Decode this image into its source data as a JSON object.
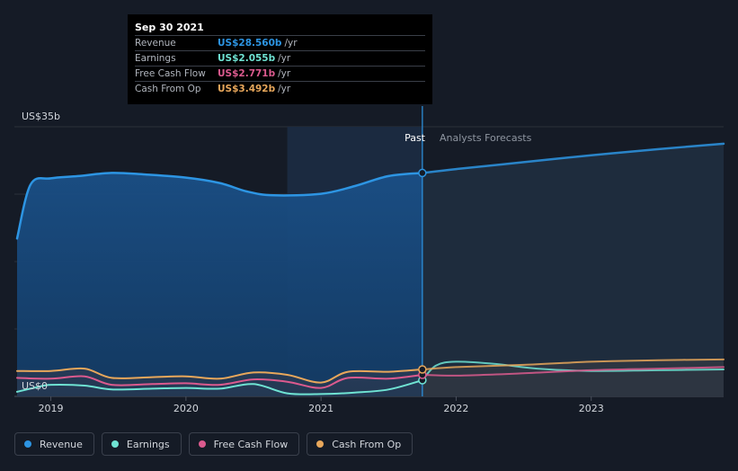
{
  "tooltip": {
    "date": "Sep 30 2021",
    "rows": [
      {
        "label": "Revenue",
        "value": "US$28.560b",
        "unit": "/yr",
        "color": "#2d95e3"
      },
      {
        "label": "Earnings",
        "value": "US$2.055b",
        "unit": "/yr",
        "color": "#6fe3d3"
      },
      {
        "label": "Free Cash Flow",
        "value": "US$2.771b",
        "unit": "/yr",
        "color": "#db5a8e"
      },
      {
        "label": "Cash From Op",
        "value": "US$3.492b",
        "unit": "/yr",
        "color": "#e8a75b"
      }
    ]
  },
  "legend": [
    {
      "label": "Revenue",
      "color": "#2d95e3"
    },
    {
      "label": "Earnings",
      "color": "#6fe3d3"
    },
    {
      "label": "Free Cash Flow",
      "color": "#db5a8e"
    },
    {
      "label": "Cash From Op",
      "color": "#e8a75b"
    }
  ],
  "chart_data": {
    "type": "line",
    "ylabel_top": "US$35b",
    "ylabel_bottom": "US$0",
    "ylim": [
      0,
      35
    ],
    "xlim": [
      2018.73,
      2023.98
    ],
    "x_tick_labels": [
      "2019",
      "2020",
      "2021",
      "2022",
      "2023"
    ],
    "x_ticks": [
      2019,
      2020,
      2021,
      2022,
      2023
    ],
    "past_label": "Past",
    "forecast_label": "Analysts Forecasts",
    "divider_x": 2021.75,
    "highlight_start_x": 2020.75,
    "grid": true,
    "legend_position": "bottom-left",
    "series": [
      {
        "name": "Revenue",
        "color": "#2d95e3",
        "points": [
          [
            2018.75,
            20.5
          ],
          [
            2018.85,
            27.5
          ],
          [
            2019.0,
            28.3
          ],
          [
            2019.2,
            28.6
          ],
          [
            2019.45,
            29.0
          ],
          [
            2019.7,
            28.8
          ],
          [
            2020.0,
            28.4
          ],
          [
            2020.25,
            27.7
          ],
          [
            2020.45,
            26.6
          ],
          [
            2020.65,
            26.1
          ],
          [
            2021.0,
            26.3
          ],
          [
            2021.25,
            27.3
          ],
          [
            2021.5,
            28.6
          ],
          [
            2021.75,
            29.0
          ]
        ],
        "forecast": [
          [
            2021.75,
            29.0
          ],
          [
            2022.0,
            29.5
          ],
          [
            2022.5,
            30.4
          ],
          [
            2023.0,
            31.3
          ],
          [
            2023.5,
            32.1
          ],
          [
            2023.98,
            32.8
          ]
        ]
      },
      {
        "name": "Earnings",
        "color": "#6fe3d3",
        "points": [
          [
            2018.75,
            0.6
          ],
          [
            2018.9,
            1.2
          ],
          [
            2019.0,
            1.5
          ],
          [
            2019.25,
            1.4
          ],
          [
            2019.45,
            0.9
          ],
          [
            2019.75,
            1.0
          ],
          [
            2020.0,
            1.1
          ],
          [
            2020.25,
            1.0
          ],
          [
            2020.5,
            1.6
          ],
          [
            2020.75,
            0.4
          ],
          [
            2021.0,
            0.3
          ],
          [
            2021.25,
            0.5
          ],
          [
            2021.5,
            0.9
          ],
          [
            2021.75,
            2.1
          ]
        ],
        "forecast": [
          [
            2021.75,
            2.1
          ],
          [
            2021.85,
            4.0
          ],
          [
            2022.0,
            4.5
          ],
          [
            2022.3,
            4.2
          ],
          [
            2022.6,
            3.6
          ],
          [
            2023.0,
            3.3
          ],
          [
            2023.5,
            3.4
          ],
          [
            2023.98,
            3.5
          ]
        ]
      },
      {
        "name": "Free Cash Flow",
        "color": "#db5a8e",
        "points": [
          [
            2018.75,
            2.4
          ],
          [
            2019.0,
            2.3
          ],
          [
            2019.25,
            2.6
          ],
          [
            2019.45,
            1.5
          ],
          [
            2019.75,
            1.6
          ],
          [
            2020.0,
            1.7
          ],
          [
            2020.25,
            1.5
          ],
          [
            2020.5,
            2.2
          ],
          [
            2020.75,
            1.9
          ],
          [
            2021.0,
            1.1
          ],
          [
            2021.2,
            2.4
          ],
          [
            2021.5,
            2.3
          ],
          [
            2021.75,
            2.8
          ]
        ],
        "forecast": [
          [
            2021.75,
            2.8
          ],
          [
            2022.0,
            2.7
          ],
          [
            2022.5,
            3.0
          ],
          [
            2023.0,
            3.4
          ],
          [
            2023.5,
            3.6
          ],
          [
            2023.98,
            3.8
          ]
        ]
      },
      {
        "name": "Cash From Op",
        "color": "#e8a75b",
        "points": [
          [
            2018.75,
            3.3
          ],
          [
            2019.0,
            3.3
          ],
          [
            2019.25,
            3.6
          ],
          [
            2019.45,
            2.4
          ],
          [
            2019.75,
            2.5
          ],
          [
            2020.0,
            2.6
          ],
          [
            2020.25,
            2.3
          ],
          [
            2020.5,
            3.1
          ],
          [
            2020.75,
            2.8
          ],
          [
            2021.0,
            1.8
          ],
          [
            2021.2,
            3.2
          ],
          [
            2021.5,
            3.2
          ],
          [
            2021.75,
            3.5
          ]
        ],
        "forecast": [
          [
            2021.75,
            3.5
          ],
          [
            2022.0,
            3.8
          ],
          [
            2022.5,
            4.1
          ],
          [
            2023.0,
            4.5
          ],
          [
            2023.5,
            4.7
          ],
          [
            2023.98,
            4.8
          ]
        ]
      }
    ]
  }
}
